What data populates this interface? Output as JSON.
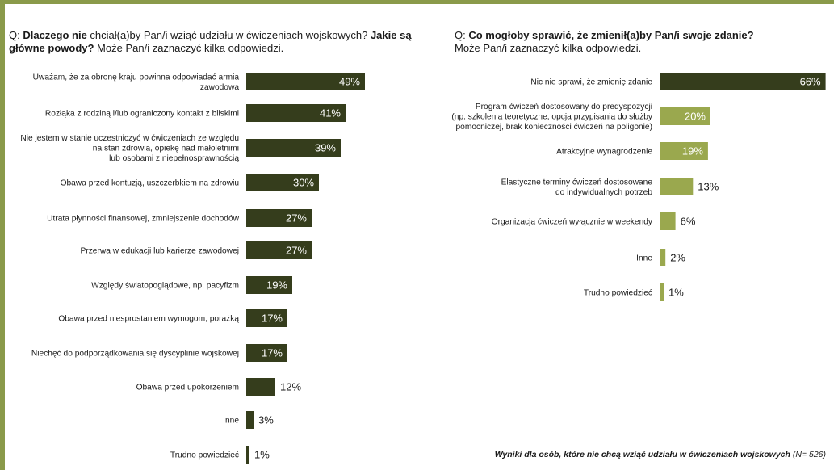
{
  "questions": {
    "left": {
      "prefix": "Q: ",
      "bold1": "Dlaczego nie",
      "mid": " chciał(a)by Pan/i wziąć udziału w ćwiczeniach wojskowych? ",
      "bold2": "Jakie są główne powody?",
      "suffix": " Może Pan/i zaznaczyć kilka odpowiedzi."
    },
    "right": {
      "prefix": "Q: ",
      "bold": "Co mogłoby sprawić, że zmienił(a)by Pan/i swoje zdanie?",
      "suffix": "Może Pan/i zaznaczyć kilka odpowiedzi."
    }
  },
  "footnote": {
    "bold": "Wyniki dla osób, które nie chcą wziąć udziału w ćwiczeniach wojskowych",
    "rest": " (N= 526)"
  },
  "colors": {
    "dark": "#353d1c",
    "light": "#9aa84e",
    "frame": "#8a9a4a"
  },
  "chart_data": [
    {
      "type": "bar",
      "orientation": "horizontal",
      "title": "",
      "unit": "%",
      "categories": [
        [
          "Uważam, że za obronę kraju powinna odpowiadać armia",
          "zawodowa"
        ],
        [
          "Rozłąka z rodziną i/lub ograniczony kontakt z bliskimi"
        ],
        [
          "Nie jestem w stanie uczestniczyć w ćwiczeniach ze względu",
          "na stan zdrowia, opiekę nad małoletnimi",
          "lub osobami z niepełnosprawnością"
        ],
        [
          "Obawa przed kontuzją, uszczerbkiem na zdrowiu"
        ],
        [
          "Utrata płynności finansowej, zmniejszenie dochodów"
        ],
        [
          "Przerwa w edukacji lub karierze zawodowej"
        ],
        [
          "Względy światopoglądowe, np. pacyfizm"
        ],
        [
          "Obawa przed niesprostaniem wymogom, porażką"
        ],
        [
          "Niechęć do podporządkowania się dyscyplinie wojskowej"
        ],
        [
          "Obawa przed upokorzeniem"
        ],
        [
          "Inne"
        ],
        [
          "Trudno powiedzieć"
        ]
      ],
      "values": [
        49,
        41,
        39,
        30,
        27,
        27,
        19,
        17,
        17,
        12,
        3,
        1
      ],
      "labels": [
        "49%",
        "41%",
        "39%",
        "30%",
        "27%",
        "27%",
        "19%",
        "17%",
        "17%",
        "12%",
        "3%",
        "1%"
      ]
    },
    {
      "type": "bar",
      "orientation": "horizontal",
      "title": "",
      "unit": "%",
      "categories": [
        [
          "Nic nie sprawi, że zmienię zdanie"
        ],
        [
          "Program ćwiczeń dostosowany do predyspozycji",
          "(np. szkolenia teoretyczne, opcja przypisania do służby",
          "pomocniczej, brak konieczności ćwiczeń na poligonie)"
        ],
        [
          "Atrakcyjne wynagrodzenie"
        ],
        [
          "Elastyczne terminy ćwiczeń dostosowane",
          "do indywidualnych potrzeb"
        ],
        [
          "Organizacja ćwiczeń wyłącznie w weekendy"
        ],
        [
          "Inne"
        ],
        [
          "Trudno powiedzieć"
        ]
      ],
      "values": [
        66,
        20,
        19,
        13,
        6,
        2,
        1
      ],
      "labels": [
        "66%",
        "20%",
        "19%",
        "13%",
        "6%",
        "2%",
        "1%"
      ]
    }
  ]
}
